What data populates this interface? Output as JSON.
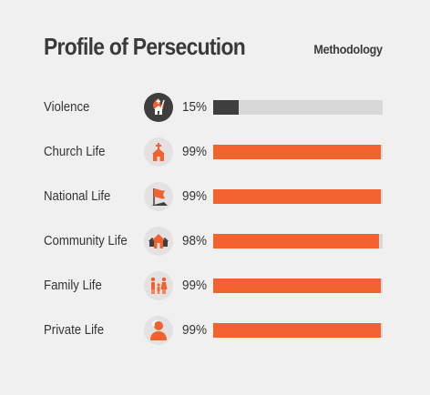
{
  "header": {
    "title": "Profile of Persecution",
    "methodology_label": "Methodology"
  },
  "colors": {
    "accent": "#f0622e",
    "dark": "#3e3e3e",
    "track": "#d8d8d8",
    "background": "#f1f0f0"
  },
  "rows": [
    {
      "label": "Violence",
      "percent": "15%",
      "fill_fraction": 0.15,
      "icon": "violence-icon",
      "bar_color": "#3e3e3e"
    },
    {
      "label": "Church Life",
      "percent": "99%",
      "fill_fraction": 0.99,
      "icon": "church-icon",
      "bar_color": "#f0622e"
    },
    {
      "label": "National Life",
      "percent": "99%",
      "fill_fraction": 0.99,
      "icon": "flag-icon",
      "bar_color": "#f0622e"
    },
    {
      "label": "Community Life",
      "percent": "98%",
      "fill_fraction": 0.98,
      "icon": "community-icon",
      "bar_color": "#f0622e"
    },
    {
      "label": "Family Life",
      "percent": "99%",
      "fill_fraction": 0.99,
      "icon": "family-icon",
      "bar_color": "#f0622e"
    },
    {
      "label": "Private Life",
      "percent": "99%",
      "fill_fraction": 0.99,
      "icon": "person-icon",
      "bar_color": "#f0622e"
    }
  ]
}
